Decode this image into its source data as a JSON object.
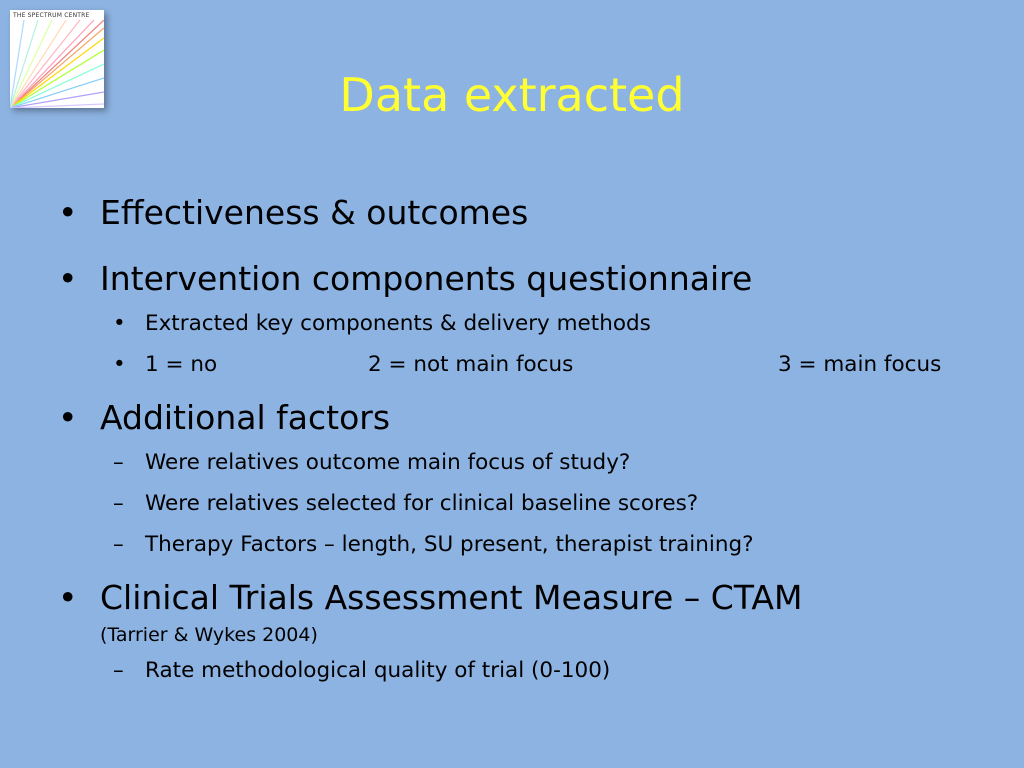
{
  "logo": {
    "text": "THE SPECTRUM CENTRE"
  },
  "title": "Data extracted",
  "colors": {
    "background": "#8db3e2",
    "title": "#ffff33"
  },
  "bullets": {
    "b1": "Effectiveness & outcomes",
    "b2": "Intervention components questionnaire",
    "b2_sub1": "Extracted key components & delivery methods",
    "b2_sub2_a": "1 = no",
    "b2_sub2_b": "2 = not main focus",
    "b2_sub2_c": "3 = main focus",
    "b3": "Additional factors",
    "b3_sub1": "Were relatives outcome main focus of study?",
    "b3_sub2": "Were relatives selected for clinical baseline scores?",
    "b3_sub3": "Therapy Factors – length, SU present, therapist training?",
    "b4": "Clinical Trials Assessment Measure – CTAM",
    "b4_note": "(Tarrier & Wykes 2004)",
    "b4_sub1": "Rate methodological quality of trial (0-100)"
  },
  "markers": {
    "bullet": "•",
    "dash": "–"
  }
}
